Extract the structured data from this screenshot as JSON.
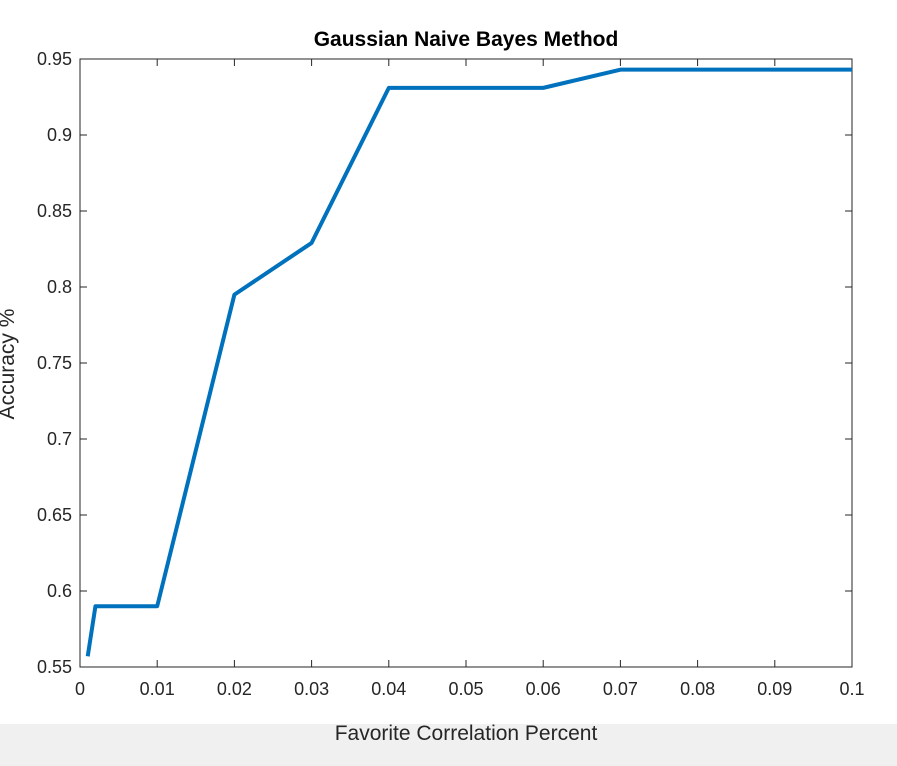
{
  "chart_data": {
    "type": "line",
    "title": "Gaussian Naive Bayes Method",
    "xlabel": "Favorite Correlation Percent",
    "ylabel": "Accuracy %",
    "xlim": [
      0,
      0.1
    ],
    "ylim": [
      0.55,
      0.95
    ],
    "x_ticks": [
      "0",
      "0.01",
      "0.02",
      "0.03",
      "0.04",
      "0.05",
      "0.06",
      "0.07",
      "0.08",
      "0.09",
      "0.1"
    ],
    "y_ticks": [
      "0.55",
      "0.6",
      "0.65",
      "0.7",
      "0.75",
      "0.8",
      "0.85",
      "0.9",
      "0.95"
    ],
    "grid": false,
    "series": [
      {
        "color": "#0072bd",
        "x": [
          0.001,
          0.002,
          0.01,
          0.02,
          0.03,
          0.04,
          0.05,
          0.06,
          0.07,
          0.08,
          0.09,
          0.1
        ],
        "y": [
          0.557,
          0.59,
          0.59,
          0.795,
          0.829,
          0.931,
          0.931,
          0.931,
          0.943,
          0.943,
          0.943,
          0.943
        ]
      }
    ]
  }
}
